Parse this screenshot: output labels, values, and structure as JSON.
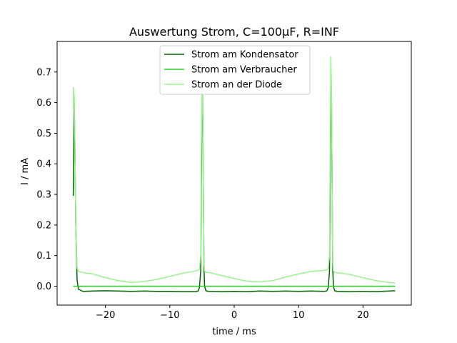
{
  "chart_data": {
    "type": "line",
    "title": "Auswertung Strom, C=100µF, R=INF",
    "xlabel": "time / ms",
    "ylabel": "I / mA",
    "xlim": [
      -27.5,
      27.5
    ],
    "ylim": [
      -0.062,
      0.8
    ],
    "xticks": [
      -20,
      -10,
      0,
      10,
      20
    ],
    "xtick_labels": [
      "−20",
      "−10",
      "0",
      "10",
      "20"
    ],
    "yticks": [
      0.0,
      0.1,
      0.2,
      0.3,
      0.4,
      0.5,
      0.6,
      0.7
    ],
    "ytick_labels": [
      "0.0",
      "0.1",
      "0.2",
      "0.3",
      "0.4",
      "0.5",
      "0.6",
      "0.7"
    ],
    "grid": false,
    "legend_position": "top-center",
    "series": [
      {
        "name": "Strom am Kondensator",
        "color": "#006400",
        "x": [
          -25.0,
          -24.95,
          -24.85,
          -24.75,
          -24.6,
          -24.4,
          -24.2,
          -23.5,
          -22,
          -20,
          -18,
          -16,
          -14,
          -12,
          -10,
          -8,
          -6,
          -5.6,
          -5.4,
          -5.2,
          -5.1,
          -5.0,
          -4.9,
          -4.8,
          -4.7,
          -4.6,
          -4.4,
          -4.0,
          -2,
          0,
          2,
          4,
          6,
          8,
          10,
          12,
          14,
          14.4,
          14.6,
          14.8,
          14.9,
          15.0,
          15.1,
          15.2,
          15.3,
          15.4,
          15.6,
          16.0,
          18,
          20,
          22,
          24,
          25.0
        ],
        "y": [
          0.295,
          0.35,
          0.6,
          0.48,
          0.2,
          0.02,
          -0.01,
          -0.017,
          -0.016,
          -0.015,
          -0.016,
          -0.017,
          -0.016,
          -0.017,
          -0.017,
          -0.018,
          -0.018,
          -0.016,
          -0.005,
          0.05,
          0.35,
          0.62,
          0.63,
          0.35,
          0.06,
          0.0,
          -0.015,
          -0.017,
          -0.018,
          -0.017,
          -0.018,
          -0.016,
          -0.017,
          -0.016,
          -0.017,
          -0.016,
          -0.017,
          -0.015,
          -0.005,
          0.05,
          0.3,
          0.62,
          0.64,
          0.35,
          0.06,
          0.0,
          -0.015,
          -0.017,
          -0.018,
          -0.017,
          -0.018,
          -0.016,
          -0.015
        ]
      },
      {
        "name": "Strom am Verbraucher",
        "color": "#22cc22",
        "x": [
          -25.0,
          25.0
        ],
        "y": [
          0.0,
          0.0
        ]
      },
      {
        "name": "Strom an der Diode",
        "color": "#99f28e",
        "x": [
          -25.0,
          -24.95,
          -24.85,
          -24.75,
          -24.6,
          -24.4,
          -24.2,
          -23.5,
          -22,
          -20,
          -18,
          -16,
          -14,
          -12,
          -10,
          -8,
          -6,
          -5.6,
          -5.4,
          -5.2,
          -5.1,
          -5.0,
          -4.9,
          -4.8,
          -4.7,
          -4.6,
          -4.4,
          -4.0,
          -2,
          0,
          2,
          4,
          6,
          8,
          10,
          12,
          14,
          14.4,
          14.6,
          14.8,
          14.9,
          15.0,
          15.1,
          15.2,
          15.3,
          15.4,
          15.6,
          16.0,
          18,
          20,
          22,
          24,
          25.0
        ],
        "y": [
          0.58,
          0.65,
          0.62,
          0.48,
          0.2,
          0.06,
          0.048,
          0.045,
          0.04,
          0.028,
          0.018,
          0.012,
          0.015,
          0.022,
          0.032,
          0.042,
          0.05,
          0.052,
          0.055,
          0.1,
          0.45,
          0.68,
          0.62,
          0.35,
          0.08,
          0.05,
          0.045,
          0.045,
          0.035,
          0.025,
          0.016,
          0.014,
          0.018,
          0.03,
          0.04,
          0.048,
          0.052,
          0.054,
          0.058,
          0.1,
          0.45,
          0.75,
          0.66,
          0.35,
          0.08,
          0.05,
          0.045,
          0.044,
          0.038,
          0.028,
          0.018,
          0.012,
          0.01
        ]
      }
    ]
  }
}
